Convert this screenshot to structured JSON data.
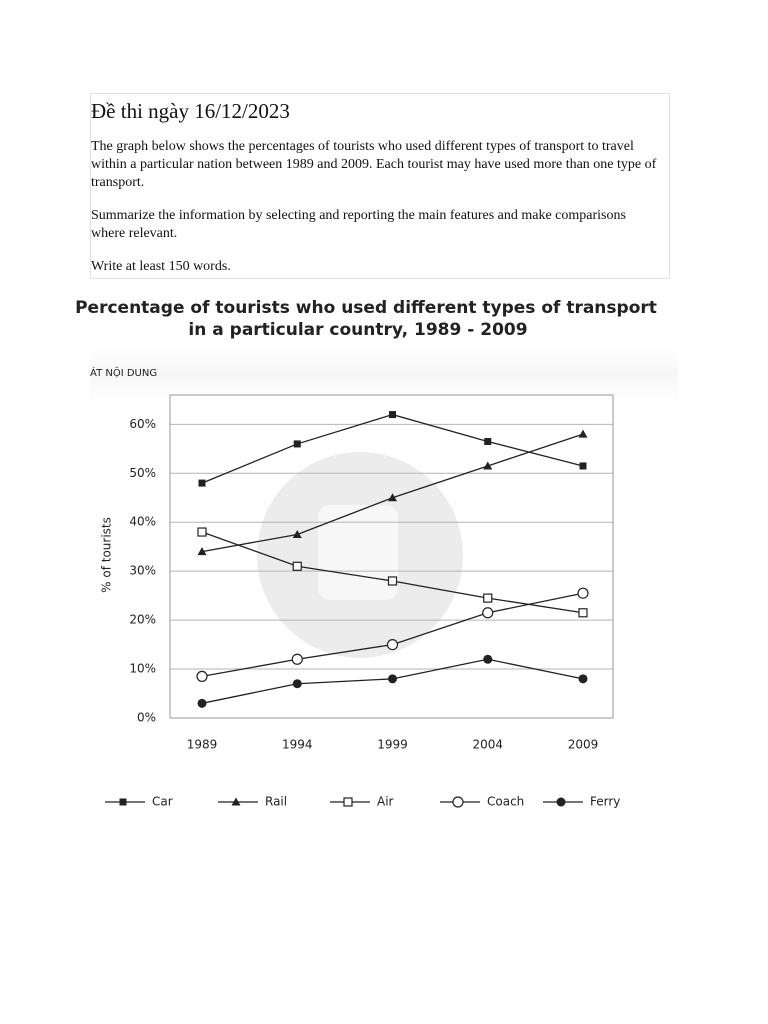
{
  "header": {
    "title": "Đề thi ngày 16/12/2023"
  },
  "body": [
    "The graph below shows the percentages of tourists who used different types of transport to travel within a particular nation between 1989 and 2009. Each tourist may have used more than one type of transport.",
    "Summarize the information by selecting and reporting the main features and make comparisons where relevant.",
    "Write at least 150 words."
  ],
  "overlay_label": "ÁT NỘI DUNG",
  "chart_data": {
    "type": "line",
    "title": [
      "Percentage of tourists who used different types of transport",
      "in a particular country, 1989 - 2009"
    ],
    "y_label": "% of tourists",
    "categories": [
      "1989",
      "1994",
      "1999",
      "2004",
      "2009"
    ],
    "ylim": [
      0,
      66
    ],
    "yticks": [
      {
        "value": 0,
        "label": "0%"
      },
      {
        "value": 10,
        "label": "10%"
      },
      {
        "value": 20,
        "label": "20%"
      },
      {
        "value": 30,
        "label": "30%"
      },
      {
        "value": 40,
        "label": "40%"
      },
      {
        "value": 50,
        "label": "50%"
      },
      {
        "value": 60,
        "label": "60%"
      }
    ],
    "grid": true,
    "legend": "bottom",
    "series": [
      {
        "name": "Car",
        "color": "#222222",
        "marker": "square-filled",
        "values": [
          48,
          56,
          62,
          56.5,
          51.5
        ]
      },
      {
        "name": "Rail",
        "color": "#222222",
        "marker": "triangle",
        "values": [
          34,
          37.5,
          45,
          51.5,
          58
        ]
      },
      {
        "name": "Air",
        "color": "#222222",
        "marker": "square-open",
        "values": [
          38,
          31,
          28,
          24.5,
          21.5
        ]
      },
      {
        "name": "Coach",
        "color": "#222222",
        "marker": "circle-open",
        "values": [
          8.5,
          12,
          15,
          21.5,
          25.5
        ]
      },
      {
        "name": "Ferry",
        "color": "#222222",
        "marker": "circle-filled",
        "values": [
          3,
          7,
          8,
          12,
          8
        ]
      }
    ]
  }
}
